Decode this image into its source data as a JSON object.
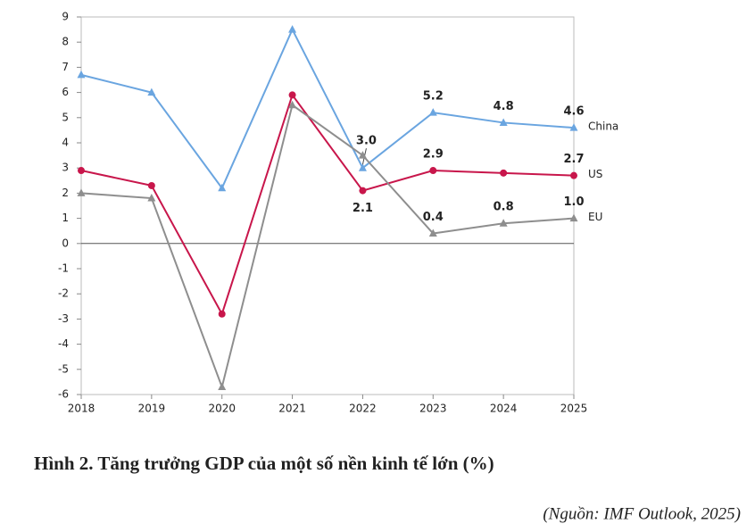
{
  "chart_data": {
    "type": "line",
    "title": "Hình 2. Tăng trưởng GDP của một số nền kinh tế lớn (%)",
    "source": "(Nguồn: IMF Outlook, 2025)",
    "categories": [
      "2018",
      "2019",
      "2020",
      "2021",
      "2022",
      "2023",
      "2024",
      "2025"
    ],
    "series": [
      {
        "name": "China",
        "color": "#6aa5e0",
        "marker": "triangle",
        "values": [
          6.7,
          6.0,
          2.2,
          8.5,
          3.0,
          5.2,
          4.8,
          4.6
        ],
        "value_labels": [
          null,
          null,
          null,
          null,
          "3.0",
          "5.2",
          "4.8",
          "4.6"
        ]
      },
      {
        "name": "US",
        "color": "#c8164b",
        "marker": "circle",
        "values": [
          2.9,
          2.3,
          -2.8,
          5.9,
          2.1,
          2.9,
          2.8,
          2.7
        ],
        "value_labels": [
          null,
          null,
          null,
          null,
          "2.1",
          "2.9",
          null,
          "2.7"
        ]
      },
      {
        "name": "EU",
        "color": "#8e8e8e",
        "marker": "triangle",
        "values": [
          2.0,
          1.8,
          -5.7,
          5.5,
          3.5,
          0.4,
          0.8,
          1.0
        ],
        "value_labels": [
          null,
          null,
          null,
          null,
          null,
          "0.4",
          "0.8",
          "1.0"
        ]
      }
    ],
    "ylim": [
      -6,
      9
    ],
    "yticks": [
      -6,
      -5,
      -4,
      -3,
      -2,
      -1,
      0,
      1,
      2,
      3,
      4,
      5,
      6,
      7,
      8,
      9
    ]
  }
}
